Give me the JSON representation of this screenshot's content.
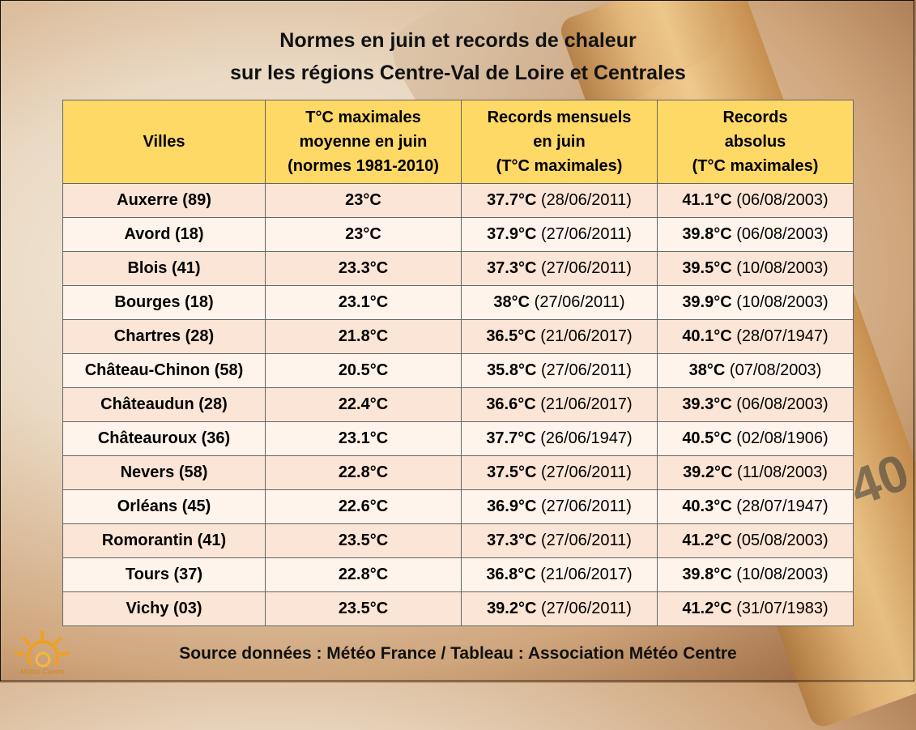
{
  "title_line1": "Normes en juin et records de chaleur",
  "title_line2": "sur les régions Centre-Val de Loire et Centrales",
  "headers": {
    "city": "Villes",
    "norm": [
      "T°C maximales",
      "moyenne en juin",
      "(normes 1981-2010)"
    ],
    "monthly": [
      "Records mensuels",
      "en juin",
      "(T°C maximales)"
    ],
    "absolute": [
      "Records",
      "absolus",
      "(T°C maximales)"
    ]
  },
  "rows": [
    {
      "city": "Auxerre (89)",
      "norm": "23°C",
      "m_val": "37.7°C",
      "m_date": "(28/06/2011)",
      "a_val": "41.1°C",
      "a_date": "(06/08/2003)"
    },
    {
      "city": "Avord (18)",
      "norm": "23°C",
      "m_val": "37.9°C",
      "m_date": "(27/06/2011)",
      "a_val": "39.8°C",
      "a_date": "(06/08/2003)"
    },
    {
      "city": "Blois (41)",
      "norm": "23.3°C",
      "m_val": "37.3°C",
      "m_date": "(27/06/2011)",
      "a_val": "39.5°C",
      "a_date": "(10/08/2003)"
    },
    {
      "city": "Bourges (18)",
      "norm": "23.1°C",
      "m_val": "38°C",
      "m_date": "(27/06/2011)",
      "a_val": "39.9°C",
      "a_date": "(10/08/2003)"
    },
    {
      "city": "Chartres (28)",
      "norm": "21.8°C",
      "m_val": "36.5°C",
      "m_date": "(21/06/2017)",
      "a_val": "40.1°C",
      "a_date": "(28/07/1947)"
    },
    {
      "city": "Château-Chinon (58)",
      "norm": "20.5°C",
      "m_val": "35.8°C",
      "m_date": "(27/06/2011)",
      "a_val": "38°C",
      "a_date": "(07/08/2003)"
    },
    {
      "city": "Châteaudun (28)",
      "norm": "22.4°C",
      "m_val": "36.6°C",
      "m_date": "(21/06/2017)",
      "a_val": "39.3°C",
      "a_date": "(06/08/2003)"
    },
    {
      "city": "Châteauroux (36)",
      "norm": "23.1°C",
      "m_val": "37.7°C",
      "m_date": "(26/06/1947)",
      "a_val": "40.5°C",
      "a_date": "(02/08/1906)"
    },
    {
      "city": "Nevers (58)",
      "norm": "22.8°C",
      "m_val": "37.5°C",
      "m_date": "(27/06/2011)",
      "a_val": "39.2°C",
      "a_date": "(11/08/2003)"
    },
    {
      "city": "Orléans (45)",
      "norm": "22.6°C",
      "m_val": "36.9°C",
      "m_date": "(27/06/2011)",
      "a_val": "40.3°C",
      "a_date": "(28/07/1947)"
    },
    {
      "city": "Romorantin (41)",
      "norm": "23.5°C",
      "m_val": "37.3°C",
      "m_date": "(27/06/2011)",
      "a_val": "41.2°C",
      "a_date": "(05/08/2003)"
    },
    {
      "city": "Tours (37)",
      "norm": "22.8°C",
      "m_val": "36.8°C",
      "m_date": "(21/06/2017)",
      "a_val": "39.8°C",
      "a_date": "(10/08/2003)"
    },
    {
      "city": "Vichy (03)",
      "norm": "23.5°C",
      "m_val": "39.2°C",
      "m_date": "(27/06/2011)",
      "a_val": "41.2°C",
      "a_date": "(31/07/1983)"
    }
  ],
  "source": "Source données : Météo France / Tableau : Association Météo Centre",
  "background_number": "40",
  "logo": {
    "icon": "sun-icon",
    "text": "Météo Centre"
  },
  "colors": {
    "header": "#ffd966",
    "row_odd": "#fbe5d6",
    "row_even": "#fff4ec"
  }
}
